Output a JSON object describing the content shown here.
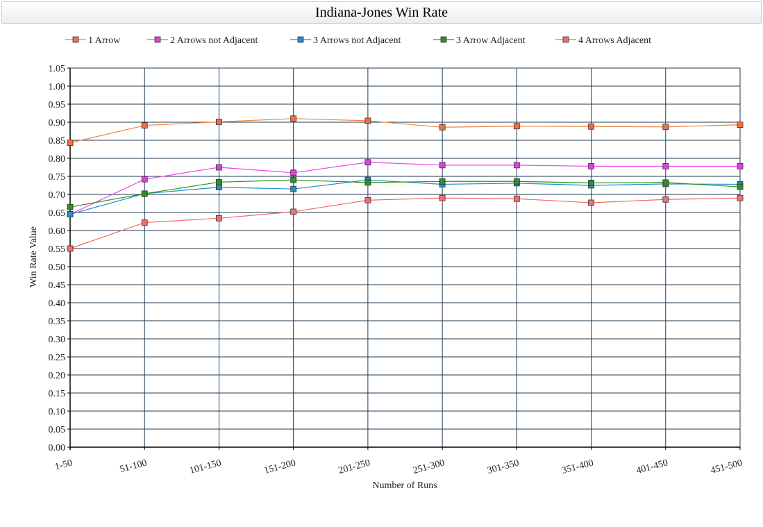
{
  "chart_data": {
    "type": "line",
    "title": "Indiana-Jones Win Rate",
    "xlabel": "Number of Runs",
    "ylabel": "Win Rate Value",
    "categories": [
      "1-50",
      "51-100",
      "101-150",
      "151-200",
      "201-250",
      "251-300",
      "301-350",
      "351-400",
      "401-450",
      "451-500"
    ],
    "ylim": [
      0,
      1.05
    ],
    "yticks": [
      "0.00",
      "0.05",
      "0.10",
      "0.15",
      "0.20",
      "0.25",
      "0.30",
      "0.35",
      "0.40",
      "0.45",
      "0.50",
      "0.55",
      "0.60",
      "0.65",
      "0.70",
      "0.75",
      "0.80",
      "0.85",
      "0.90",
      "0.95",
      "1.00",
      "1.05"
    ],
    "grid": true,
    "legend_position": "top",
    "series": [
      {
        "name": "1 Arrow",
        "line_color": "#f08040",
        "marker_color": "#f07040",
        "values": [
          0.843,
          0.891,
          0.901,
          0.91,
          0.904,
          0.886,
          0.889,
          0.888,
          0.887,
          0.893
        ]
      },
      {
        "name": "2 Arrows not Adjacent",
        "line_color": "#ee44ee",
        "marker_color": "#e040e0",
        "values": [
          0.645,
          0.742,
          0.775,
          0.76,
          0.789,
          0.781,
          0.781,
          0.778,
          0.778,
          0.778
        ]
      },
      {
        "name": "3 Arrows not Adjacent",
        "line_color": "#2090c8",
        "marker_color": "#2090c8",
        "values": [
          0.645,
          0.702,
          0.72,
          0.715,
          0.74,
          0.728,
          0.731,
          0.725,
          0.729,
          0.728
        ]
      },
      {
        "name": "3 Arrow Adjacent",
        "line_color": "#309020",
        "marker_color": "#309020",
        "values": [
          0.665,
          0.702,
          0.734,
          0.74,
          0.733,
          0.736,
          0.736,
          0.732,
          0.733,
          0.721
        ]
      },
      {
        "name": "4 Arrows Adjacent",
        "line_color": "#f06868",
        "marker_color": "#f07070",
        "values": [
          0.55,
          0.622,
          0.634,
          0.652,
          0.684,
          0.69,
          0.688,
          0.677,
          0.686,
          0.69
        ]
      }
    ]
  }
}
